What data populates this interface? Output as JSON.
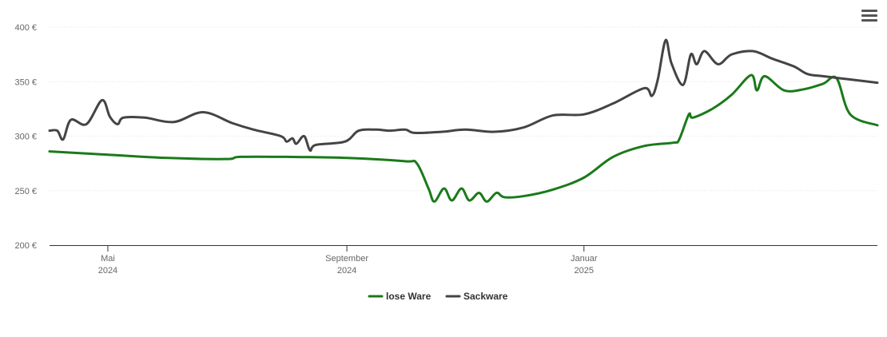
{
  "menu": {
    "icon": "hamburger-menu-icon"
  },
  "chart_data": {
    "type": "line",
    "ylim": [
      200,
      400
    ],
    "yticks": [
      200,
      250,
      300,
      350,
      400
    ],
    "ytick_labels": [
      "200 €",
      "250 €",
      "300 €",
      "350 €",
      "400 €"
    ],
    "xlim": [
      "2024-04-01",
      "2025-06-01"
    ],
    "xticks": [
      {
        "date": "2024-05-01",
        "label_top": "Mai",
        "label_bottom": "2024"
      },
      {
        "date": "2024-09-01",
        "label_top": "September",
        "label_bottom": "2024"
      },
      {
        "date": "2025-01-01",
        "label_top": "Januar",
        "label_bottom": "2025"
      }
    ],
    "grid": true,
    "legend_position": "bottom-center",
    "series": [
      {
        "name": "lose Ware",
        "color": "#1a7a1a",
        "points": [
          [
            "2024-04-01",
            286
          ],
          [
            "2024-05-01",
            283
          ],
          [
            "2024-06-01",
            280
          ],
          [
            "2024-07-01",
            279
          ],
          [
            "2024-07-08",
            281
          ],
          [
            "2024-08-01",
            281
          ],
          [
            "2024-09-01",
            280
          ],
          [
            "2024-10-01",
            277
          ],
          [
            "2024-10-07",
            275
          ],
          [
            "2024-10-13",
            252
          ],
          [
            "2024-10-16",
            240
          ],
          [
            "2024-10-21",
            252
          ],
          [
            "2024-10-25",
            241
          ],
          [
            "2024-10-30",
            252
          ],
          [
            "2024-11-03",
            241
          ],
          [
            "2024-11-08",
            248
          ],
          [
            "2024-11-12",
            240
          ],
          [
            "2024-11-17",
            248
          ],
          [
            "2024-11-21",
            244
          ],
          [
            "2024-12-01",
            245
          ],
          [
            "2024-12-16",
            251
          ],
          [
            "2025-01-01",
            262
          ],
          [
            "2025-01-16",
            281
          ],
          [
            "2025-02-01",
            291
          ],
          [
            "2025-02-16",
            294
          ],
          [
            "2025-02-19",
            297
          ],
          [
            "2025-02-24",
            320
          ],
          [
            "2025-02-26",
            317
          ],
          [
            "2025-03-08",
            325
          ],
          [
            "2025-03-18",
            338
          ],
          [
            "2025-03-28",
            356
          ],
          [
            "2025-03-31",
            342
          ],
          [
            "2025-04-04",
            355
          ],
          [
            "2025-04-14",
            342
          ],
          [
            "2025-04-24",
            343
          ],
          [
            "2025-05-04",
            348
          ],
          [
            "2025-05-11",
            353
          ],
          [
            "2025-05-18",
            320
          ],
          [
            "2025-06-01",
            310
          ]
        ]
      },
      {
        "name": "Sackware",
        "color": "#444444",
        "points": [
          [
            "2024-04-01",
            305
          ],
          [
            "2024-04-05",
            305
          ],
          [
            "2024-04-08",
            297
          ],
          [
            "2024-04-12",
            315
          ],
          [
            "2024-04-20",
            311
          ],
          [
            "2024-04-28",
            333
          ],
          [
            "2024-05-02",
            318
          ],
          [
            "2024-05-06",
            311
          ],
          [
            "2024-05-09",
            317
          ],
          [
            "2024-05-20",
            317
          ],
          [
            "2024-06-04",
            313
          ],
          [
            "2024-06-19",
            322
          ],
          [
            "2024-07-04",
            312
          ],
          [
            "2024-07-15",
            306
          ],
          [
            "2024-07-29",
            300
          ],
          [
            "2024-08-01",
            295
          ],
          [
            "2024-08-04",
            298
          ],
          [
            "2024-08-06",
            293
          ],
          [
            "2024-08-10",
            300
          ],
          [
            "2024-08-13",
            287
          ],
          [
            "2024-08-16",
            292
          ],
          [
            "2024-08-31",
            295
          ],
          [
            "2024-09-07",
            305
          ],
          [
            "2024-09-16",
            306
          ],
          [
            "2024-09-23",
            305
          ],
          [
            "2024-10-01",
            306
          ],
          [
            "2024-10-06",
            303
          ],
          [
            "2024-10-20",
            304
          ],
          [
            "2024-11-01",
            306
          ],
          [
            "2024-11-16",
            304
          ],
          [
            "2024-12-01",
            308
          ],
          [
            "2024-12-16",
            319
          ],
          [
            "2025-01-01",
            320
          ],
          [
            "2025-01-16",
            330
          ],
          [
            "2025-02-01",
            344
          ],
          [
            "2025-02-05",
            337
          ],
          [
            "2025-02-08",
            352
          ],
          [
            "2025-02-12",
            388
          ],
          [
            "2025-02-15",
            367
          ],
          [
            "2025-02-21",
            347
          ],
          [
            "2025-02-25",
            375
          ],
          [
            "2025-02-28",
            366
          ],
          [
            "2025-03-04",
            378
          ],
          [
            "2025-03-11",
            366
          ],
          [
            "2025-03-18",
            375
          ],
          [
            "2025-03-29",
            378
          ],
          [
            "2025-04-08",
            371
          ],
          [
            "2025-04-19",
            364
          ],
          [
            "2025-04-26",
            357
          ],
          [
            "2025-05-04",
            355
          ],
          [
            "2025-05-18",
            352
          ],
          [
            "2025-06-01",
            349
          ]
        ]
      }
    ]
  }
}
